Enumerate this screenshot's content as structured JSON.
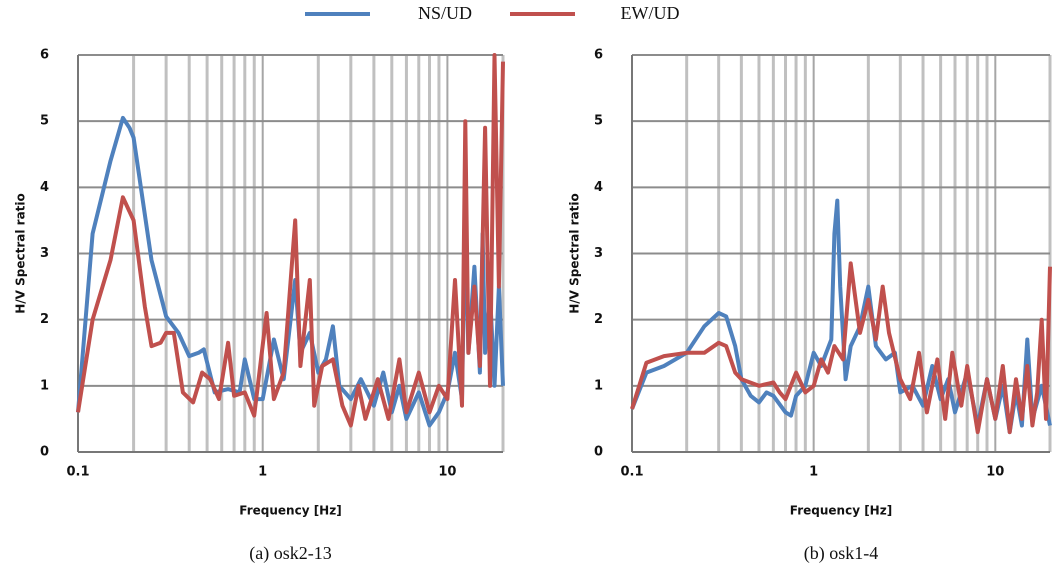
{
  "chart_data": [
    {
      "type": "line",
      "caption": "(a) osk2-13",
      "x_label": "Frequency [Hz]",
      "y_label": "H/V Spectral ratio",
      "log_x": true,
      "grid": true,
      "minor_grid": true,
      "legend": "top",
      "xlim": [
        0.1,
        20
      ],
      "xticks": [
        0.1,
        1,
        10
      ],
      "ylim": [
        0,
        6
      ],
      "yticks": [
        0,
        1,
        2,
        3,
        4,
        5,
        6
      ],
      "series": [
        {
          "name": "NS/UD",
          "color": "#4f81bd",
          "x": [
            0.1,
            0.12,
            0.15,
            0.175,
            0.19,
            0.2,
            0.25,
            0.3,
            0.35,
            0.4,
            0.45,
            0.48,
            0.55,
            0.65,
            0.75,
            0.8,
            0.9,
            1.0,
            1.15,
            1.3,
            1.5,
            1.6,
            1.8,
            2.0,
            2.2,
            2.4,
            2.6,
            3.0,
            3.4,
            4.0,
            4.5,
            5.0,
            5.5,
            6.0,
            7.0,
            8.0,
            9.0,
            10,
            11,
            12,
            12.5,
            13,
            14,
            15,
            15.5,
            16,
            17,
            18,
            19,
            20
          ],
          "values": [
            0.6,
            3.3,
            4.4,
            5.05,
            4.9,
            4.75,
            2.9,
            2.05,
            1.8,
            1.45,
            1.5,
            1.55,
            0.9,
            0.95,
            0.9,
            1.4,
            0.8,
            0.8,
            1.7,
            1.1,
            2.6,
            1.5,
            1.8,
            1.2,
            1.4,
            1.9,
            1.0,
            0.8,
            1.1,
            0.7,
            1.2,
            0.6,
            1.0,
            0.5,
            0.9,
            0.4,
            0.6,
            0.9,
            1.5,
            0.8,
            3.6,
            1.5,
            2.8,
            1.2,
            3.3,
            1.5,
            2.4,
            1.0,
            2.5,
            1.0
          ]
        },
        {
          "name": "EW/UD",
          "color": "#c0504d",
          "x": [
            0.1,
            0.12,
            0.15,
            0.175,
            0.2,
            0.23,
            0.25,
            0.28,
            0.3,
            0.33,
            0.37,
            0.42,
            0.47,
            0.52,
            0.58,
            0.65,
            0.7,
            0.8,
            0.9,
            1.05,
            1.15,
            1.3,
            1.5,
            1.6,
            1.8,
            1.9,
            2.1,
            2.4,
            2.7,
            3.0,
            3.3,
            3.6,
            4.2,
            4.8,
            5.5,
            6.0,
            7.0,
            8.0,
            9.0,
            10,
            11,
            12,
            12.5,
            13,
            14,
            15,
            16,
            17,
            18,
            19,
            20
          ],
          "values": [
            0.6,
            2.0,
            2.9,
            3.85,
            3.5,
            2.2,
            1.6,
            1.65,
            1.8,
            1.8,
            0.9,
            0.75,
            1.2,
            1.1,
            0.8,
            1.65,
            0.85,
            0.9,
            0.55,
            2.1,
            0.8,
            1.2,
            3.5,
            1.3,
            2.6,
            0.7,
            1.3,
            1.4,
            0.7,
            0.4,
            1.0,
            0.5,
            1.1,
            0.5,
            1.4,
            0.6,
            1.2,
            0.6,
            1.0,
            0.8,
            2.6,
            0.7,
            5.0,
            1.5,
            2.5,
            1.3,
            4.9,
            1.0,
            6.0,
            2.5,
            5.9
          ]
        }
      ]
    },
    {
      "type": "line",
      "caption": "(b) osk1-4",
      "x_label": "Frequency [Hz]",
      "y_label": "H/V Spectral ratio",
      "log_x": true,
      "grid": true,
      "minor_grid": true,
      "xlim": [
        0.1,
        20
      ],
      "xticks": [
        0.1,
        1,
        10
      ],
      "ylim": [
        0,
        6
      ],
      "yticks": [
        0,
        1,
        2,
        3,
        4,
        5,
        6
      ],
      "series": [
        {
          "color": "#4f81bd",
          "x": [
            0.1,
            0.12,
            0.15,
            0.2,
            0.25,
            0.3,
            0.33,
            0.37,
            0.4,
            0.45,
            0.5,
            0.55,
            0.6,
            0.7,
            0.75,
            0.8,
            0.9,
            1.0,
            1.1,
            1.25,
            1.3,
            1.35,
            1.4,
            1.5,
            1.6,
            1.8,
            2.0,
            2.2,
            2.5,
            2.8,
            3.0,
            3.5,
            4.0,
            4.5,
            5,
            5.5,
            6,
            7,
            8,
            9,
            10,
            11,
            12,
            13,
            14,
            15,
            16,
            18,
            20
          ],
          "values": [
            0.65,
            1.2,
            1.3,
            1.5,
            1.9,
            2.1,
            2.05,
            1.6,
            1.1,
            0.85,
            0.75,
            0.9,
            0.85,
            0.6,
            0.55,
            0.85,
            1.0,
            1.5,
            1.3,
            1.7,
            3.3,
            3.8,
            2.5,
            1.1,
            1.6,
            1.9,
            2.5,
            1.6,
            1.4,
            1.5,
            0.9,
            1.0,
            0.7,
            1.3,
            0.8,
            1.1,
            0.6,
            1.2,
            0.4,
            1.1,
            0.5,
            1.0,
            0.3,
            0.9,
            0.4,
            1.7,
            0.5,
            1.0,
            0.4
          ]
        },
        {
          "color": "#c0504d",
          "x": [
            0.1,
            0.12,
            0.15,
            0.2,
            0.25,
            0.3,
            0.33,
            0.37,
            0.4,
            0.5,
            0.6,
            0.65,
            0.7,
            0.8,
            0.9,
            1.0,
            1.1,
            1.2,
            1.3,
            1.45,
            1.6,
            1.8,
            2.0,
            2.2,
            2.4,
            2.6,
            3.0,
            3.4,
            3.8,
            4.2,
            4.8,
            5.3,
            5.8,
            6.5,
            7,
            8,
            9,
            10,
            11,
            12,
            13,
            14,
            15,
            16,
            17,
            18,
            19,
            20
          ],
          "values": [
            0.65,
            1.35,
            1.45,
            1.5,
            1.5,
            1.65,
            1.6,
            1.2,
            1.1,
            1.0,
            1.05,
            0.9,
            0.8,
            1.2,
            0.9,
            1.0,
            1.4,
            1.2,
            1.6,
            1.4,
            2.85,
            1.8,
            2.3,
            1.7,
            2.5,
            1.8,
            1.1,
            0.8,
            1.5,
            0.6,
            1.4,
            0.5,
            1.5,
            0.7,
            1.3,
            0.3,
            1.1,
            0.5,
            1.3,
            0.3,
            1.1,
            0.5,
            1.3,
            0.4,
            0.9,
            2.0,
            0.5,
            2.8
          ]
        }
      ]
    }
  ]
}
